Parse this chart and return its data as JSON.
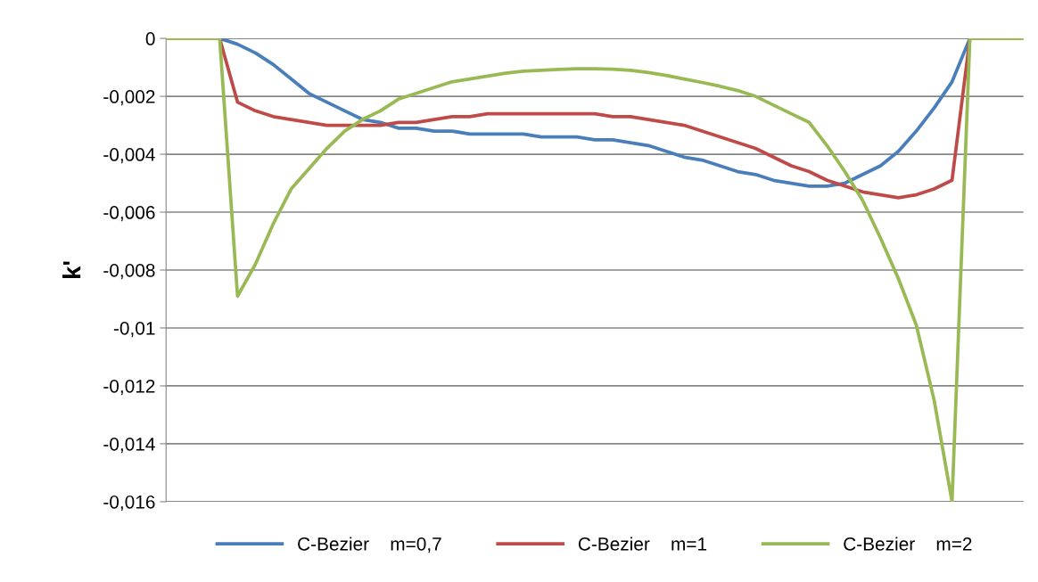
{
  "chart_data": {
    "type": "line",
    "ylabel": "k'",
    "categories": [
      null,
      null,
      null,
      null,
      null,
      null,
      null,
      null,
      null,
      null,
      null,
      null,
      null,
      null,
      null,
      null,
      null,
      null,
      null,
      null,
      null,
      null,
      null,
      null,
      null,
      null,
      null,
      null,
      null,
      null,
      null,
      null,
      null,
      null,
      null,
      null,
      null,
      null,
      null,
      null,
      null,
      null,
      null,
      null,
      null,
      null,
      null,
      null,
      null
    ],
    "series": [
      {
        "name": "C-Bezier    m=0,7",
        "color": "#4a7ebb",
        "values": [
          null,
          null,
          null,
          0,
          -0.0002,
          -0.0005,
          -0.0009,
          -0.0014,
          -0.0019,
          -0.0022,
          -0.0025,
          -0.0028,
          -0.0029,
          -0.0031,
          -0.0031,
          -0.0032,
          -0.0032,
          -0.0033,
          -0.0033,
          -0.0033,
          -0.0033,
          -0.0034,
          -0.0034,
          -0.0034,
          -0.0035,
          -0.0035,
          -0.0036,
          -0.0037,
          -0.0039,
          -0.0041,
          -0.0042,
          -0.0044,
          -0.0046,
          -0.0047,
          -0.0049,
          -0.005,
          -0.0051,
          -0.0051,
          -0.005,
          -0.0047,
          -0.0044,
          -0.0039,
          -0.0032,
          -0.0024,
          -0.0015,
          0,
          null,
          null,
          null
        ]
      },
      {
        "name": "C-Bezier    m=1",
        "color": "#be4b48",
        "values": [
          null,
          null,
          null,
          0,
          -0.0022,
          -0.0025,
          -0.0027,
          -0.0028,
          -0.0029,
          -0.003,
          -0.003,
          -0.003,
          -0.003,
          -0.0029,
          -0.0029,
          -0.0028,
          -0.0027,
          -0.0027,
          -0.0026,
          -0.0026,
          -0.0026,
          -0.0026,
          -0.0026,
          -0.0026,
          -0.0026,
          -0.0027,
          -0.0027,
          -0.0028,
          -0.0029,
          -0.003,
          -0.0032,
          -0.0034,
          -0.0036,
          -0.0038,
          -0.0041,
          -0.0044,
          -0.0046,
          -0.0049,
          -0.0051,
          -0.0053,
          -0.0054,
          -0.0055,
          -0.0054,
          -0.0052,
          -0.0049,
          0,
          null,
          null,
          null
        ]
      },
      {
        "name": "C-Bezier    m=2",
        "color": "#98b954",
        "values": [
          0,
          0,
          0,
          0,
          -0.0089,
          -0.0078,
          -0.0064,
          -0.0052,
          -0.0045,
          -0.0038,
          -0.0032,
          -0.0028,
          -0.0025,
          -0.0021,
          -0.0019,
          -0.0017,
          -0.0015,
          -0.0014,
          -0.0013,
          -0.0012,
          -0.00113,
          -0.0011,
          -0.00107,
          -0.00105,
          -0.00105,
          -0.00106,
          -0.0011,
          -0.00118,
          -0.00128,
          -0.0014,
          -0.00152,
          -0.00165,
          -0.0018,
          -0.002,
          -0.0023,
          -0.0026,
          -0.0029,
          -0.0037,
          -0.0046,
          -0.0056,
          -0.0069,
          -0.0083,
          -0.0099,
          -0.0125,
          -0.016,
          0,
          0,
          0,
          0
        ]
      }
    ],
    "ylim": [
      -0.016,
      0
    ],
    "yticks": [
      0,
      {
        "value": -0.002,
        "label": "-0,002"
      },
      {
        "value": -0.004,
        "label": "-0,004"
      },
      {
        "value": -0.006,
        "label": "-0,006"
      },
      {
        "value": -0.008,
        "label": "-0,008"
      },
      {
        "value": -0.01,
        "label": "-0,01"
      },
      {
        "value": -0.012,
        "label": "-0,012"
      },
      {
        "value": -0.014,
        "label": "-0,014"
      },
      {
        "value": -0.016,
        "label": "-0,016"
      }
    ],
    "grid": "y",
    "legend": "bottom",
    "tick_labels": "y",
    "marker": "none",
    "line_style": "solid"
  }
}
